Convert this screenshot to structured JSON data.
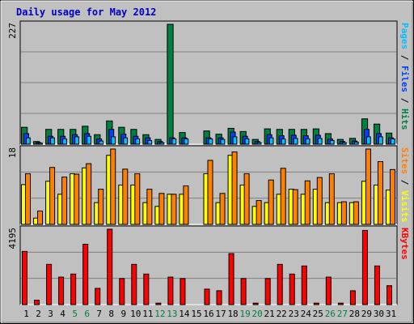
{
  "chart_data": {
    "type": "bar",
    "title": "Daily usage for May 2012",
    "categories": [
      "1",
      "2",
      "3",
      "4",
      "5",
      "6",
      "7",
      "8",
      "9",
      "10",
      "11",
      "12",
      "13",
      "14",
      "15",
      "16",
      "17",
      "18",
      "19",
      "20",
      "21",
      "22",
      "23",
      "24",
      "25",
      "26",
      "27",
      "28",
      "29",
      "30",
      "31"
    ],
    "weekend_days": [
      "5",
      "6",
      "12",
      "13",
      "19",
      "20",
      "26",
      "27"
    ],
    "panels": [
      {
        "id": "hits-files-pages",
        "ymax": 227,
        "ymax_label": "227",
        "ylabel_parts": [
          "Pages",
          "Files",
          "Hits"
        ],
        "series": [
          {
            "name": "Hits",
            "color": "#008040",
            "values": [
              32,
              5,
              28,
              28,
              28,
              34,
              18,
              44,
              32,
              28,
              18,
              9,
              227,
              22,
              0,
              25,
              19,
              30,
              24,
              9,
              29,
              28,
              28,
              28,
              29,
              20,
              9,
              11,
              48,
              38,
              21
            ]
          },
          {
            "name": "Files",
            "color": "#0040ff",
            "values": [
              20,
              3,
              15,
              15,
              18,
              20,
              10,
              28,
              19,
              15,
              12,
              5,
              12,
              12,
              0,
              12,
              12,
              23,
              15,
              5,
              18,
              16,
              17,
              16,
              17,
              10,
              5,
              6,
              28,
              20,
              12
            ]
          },
          {
            "name": "Pages",
            "color": "#00c0ff",
            "values": [
              12,
              2,
              12,
              10,
              14,
              15,
              6,
              14,
              12,
              10,
              7,
              3,
              10,
              10,
              0,
              10,
              9,
              14,
              10,
              3,
              12,
              10,
              11,
              10,
              11,
              7,
              3,
              4,
              14,
              14,
              10
            ]
          }
        ]
      },
      {
        "id": "visits-sites",
        "ymax": 18,
        "ymax_label": "18",
        "ylabel_parts": [
          "Sites",
          "Visits"
        ],
        "series": [
          {
            "name": "Visits",
            "color": "#ffff00",
            "values": [
              9.5,
              1.5,
              10.3,
              7.2,
              12.1,
              13.5,
              5.2,
              16.5,
              9.4,
              9.4,
              5.2,
              4.3,
              7.2,
              7.2,
              0,
              12.1,
              5.2,
              16.5,
              9.4,
              4.3,
              5.2,
              7.2,
              8.4,
              7.2,
              8.4,
              5.2,
              5.2,
              5.2,
              10.3,
              9.4,
              8.2
            ]
          },
          {
            "name": "Sites",
            "color": "#ff8000",
            "values": [
              12.1,
              3.2,
              13.6,
              11.3,
              12.0,
              14.5,
              8.4,
              18.0,
              13.2,
              12.1,
              8.4,
              7.4,
              7.2,
              9.2,
              0,
              15.3,
              7.4,
              17.3,
              12.1,
              5.7,
              10.6,
              13.4,
              8.3,
              10.4,
              11.2,
              12.1,
              5.4,
              5.4,
              18.0,
              15.0,
              13.1
            ]
          }
        ]
      },
      {
        "id": "kbytes",
        "ymax": 4195,
        "ymax_label": "4195",
        "ylabel_parts": [
          "KBytes"
        ],
        "series": [
          {
            "name": "KBytes",
            "color": "#ff0000",
            "values": [
              2960,
              240,
              2240,
              1530,
              1700,
              3360,
              900,
              4195,
              1450,
              2240,
              1700,
              80,
              1530,
              1450,
              0,
              860,
              770,
              2840,
              1450,
              80,
              1450,
              2240,
              1700,
              2150,
              80,
              1530,
              80,
              770,
              4130,
              2150,
              1050
            ]
          }
        ]
      }
    ]
  }
}
